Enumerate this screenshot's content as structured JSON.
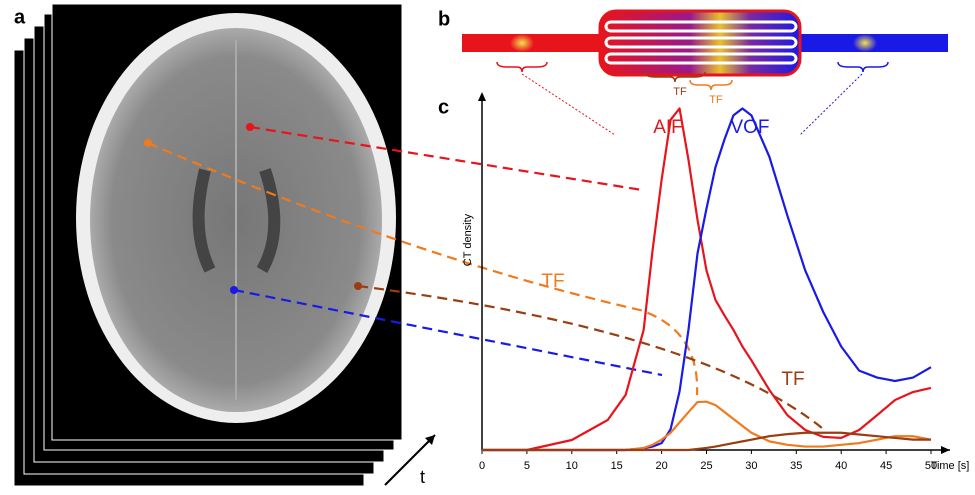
{
  "panels": [
    "a",
    "b",
    "c"
  ],
  "time_label": "t",
  "panel_b": {
    "labels": [
      "TF",
      "TF"
    ]
  },
  "chart_data": {
    "type": "line",
    "x_label": "Time [s]",
    "y_label": "CT density",
    "x": [
      0,
      5,
      10,
      14,
      16,
      18,
      19,
      20,
      21,
      22,
      23,
      24,
      25,
      26,
      27,
      28,
      29,
      30,
      32,
      34,
      36,
      38,
      40,
      42,
      44,
      46,
      48,
      50
    ],
    "xlim": [
      0,
      50
    ],
    "xticks": [
      0,
      5,
      10,
      15,
      20,
      25,
      30,
      35,
      40,
      45,
      50
    ],
    "ylim": [
      0,
      100
    ],
    "series": [
      {
        "name": "AIF",
        "color": "#e8141c",
        "values": [
          0,
          0,
          2.9,
          8.7,
          16,
          34.8,
          58,
          78.3,
          95.7,
          99,
          84,
          66.7,
          52,
          43.5,
          39,
          34.8,
          30,
          26,
          17.4,
          10.1,
          5.8,
          3.8,
          3.5,
          5.8,
          10.1,
          14.5,
          16.8,
          18
        ]
      },
      {
        "name": "VOF",
        "color": "#1a1ae6",
        "values": [
          0,
          0,
          0,
          0,
          0,
          0.5,
          1,
          2,
          6,
          17,
          35,
          57,
          70,
          82,
          90,
          97,
          99,
          97,
          85,
          68,
          52,
          40,
          30,
          23,
          21,
          20,
          21,
          24
        ]
      },
      {
        "name": "TF",
        "color": "#f07a1e",
        "values": [
          0,
          0,
          0,
          0,
          0,
          0.6,
          1.5,
          3,
          5,
          8,
          11,
          13.9,
          14,
          13,
          11,
          9,
          7,
          5,
          2.5,
          1.5,
          1,
          1,
          1.5,
          2,
          3,
          4,
          4,
          3
        ]
      },
      {
        "name": "TF",
        "color": "#9a3d12",
        "values": [
          0,
          0,
          0,
          0,
          0,
          0,
          0,
          0,
          0,
          0,
          0,
          0.3,
          0.6,
          1,
          1.5,
          2,
          2.5,
          3,
          4,
          4.6,
          5,
          5,
          5,
          4.5,
          4,
          3.5,
          3,
          3
        ]
      }
    ]
  }
}
